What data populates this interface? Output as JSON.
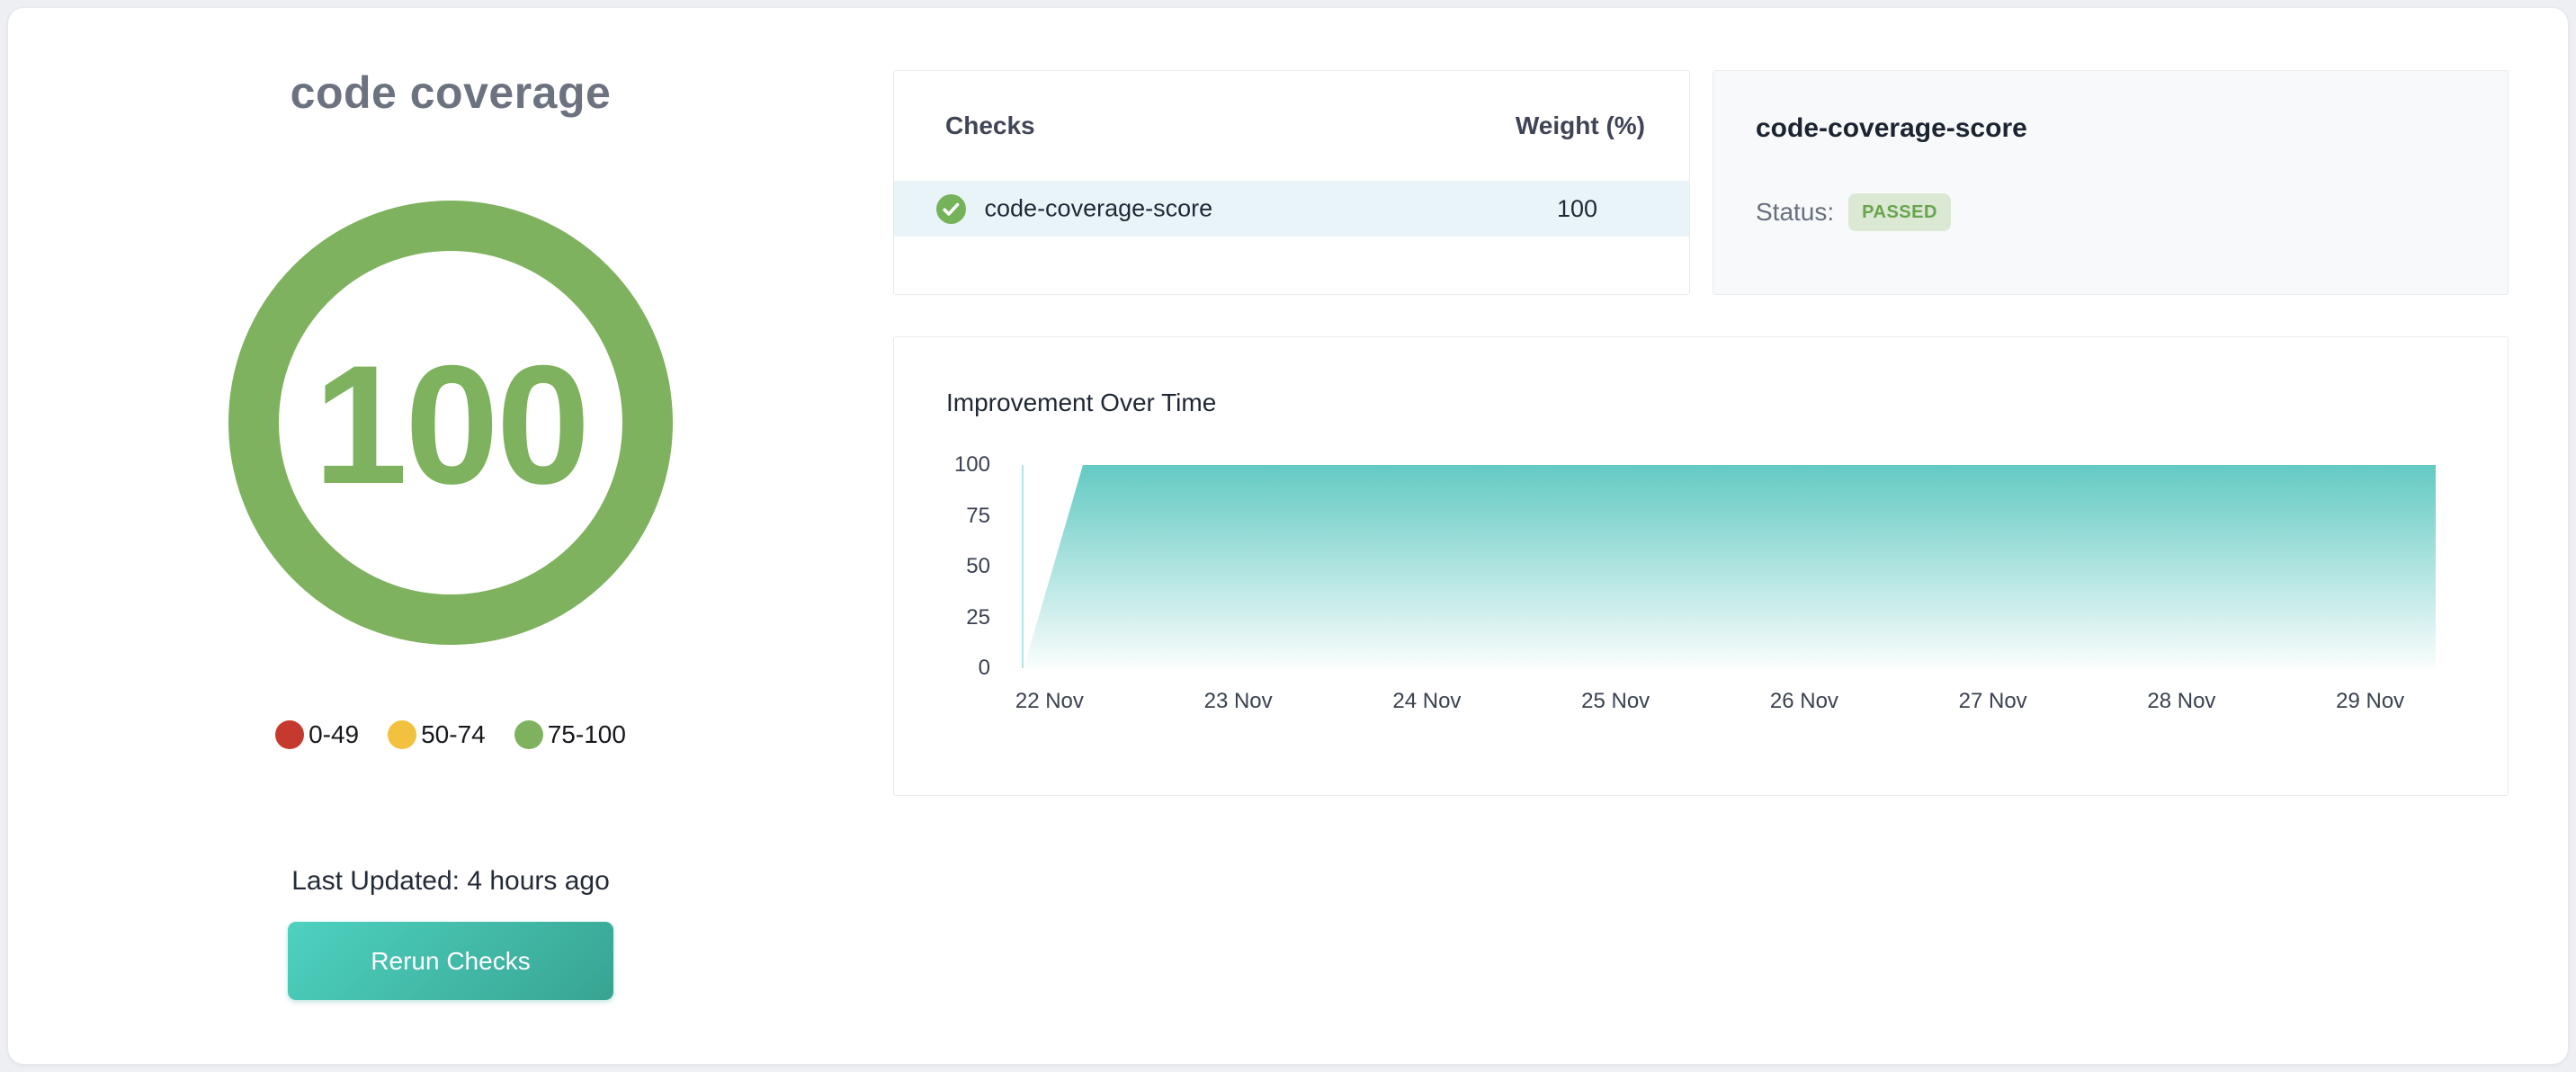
{
  "panel": {
    "title": "code coverage"
  },
  "gauge": {
    "score": "100",
    "color": "#7eb25e"
  },
  "legend": {
    "items": [
      {
        "label": "0-49",
        "color": "#c5392e"
      },
      {
        "label": "50-74",
        "color": "#f2c13e"
      },
      {
        "label": "75-100",
        "color": "#7eb25e"
      }
    ]
  },
  "last_updated": "Last Updated: 4 hours ago",
  "rerun_button": {
    "label": "Rerun Checks"
  },
  "colors": {
    "button_gradient_start": "#4ed1c0",
    "button_gradient_end": "#38a492",
    "row_highlight": "#e9f4f9",
    "check_icon_green": "#74b35a"
  },
  "checks_table": {
    "headers": {
      "checks": "Checks",
      "weight": "Weight (%)"
    },
    "rows": [
      {
        "name": "code-coverage-score",
        "weight": "100",
        "status_icon": "check-circle"
      }
    ]
  },
  "detail": {
    "title": "code-coverage-score",
    "status_label": "Status:",
    "status_value": "PASSED",
    "status_badge_bg": "#dbe9d4",
    "status_badge_color": "#68a44e"
  },
  "chart_data": {
    "type": "area",
    "title": "Improvement Over Time",
    "x": [
      "22 Nov",
      "23 Nov",
      "24 Nov",
      "25 Nov",
      "26 Nov",
      "27 Nov",
      "28 Nov",
      "29 Nov"
    ],
    "values": [
      0,
      100,
      100,
      100,
      100,
      100,
      100,
      100
    ],
    "y_ticks": [
      0,
      25,
      50,
      75,
      100
    ],
    "ylim": [
      0,
      100
    ],
    "xlabel": "",
    "ylabel": "",
    "grid": false,
    "legend_position": "none",
    "area_color_top": "#5ec8c1",
    "area_profile": [
      [
        0,
        0
      ],
      [
        0.042,
        100
      ],
      [
        1,
        100
      ]
    ]
  }
}
